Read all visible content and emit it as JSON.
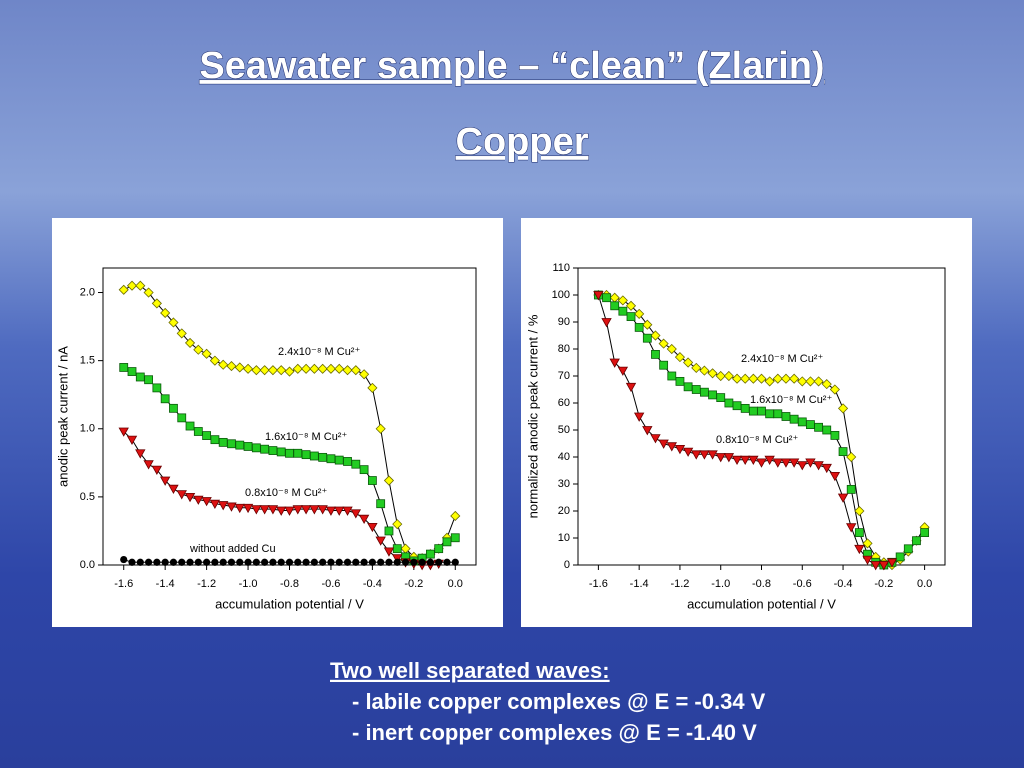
{
  "title": "Seawater sample – “clean” (Zlarin)",
  "subtitle": "Copper",
  "chart_data": [
    {
      "type": "line",
      "xlabel": "accumulation potential / V",
      "ylabel": "anodic peak current / nA",
      "xlim": [
        -1.7,
        0.1
      ],
      "ylim": [
        0,
        2.18
      ],
      "xticks": [
        -1.6,
        -1.4,
        -1.2,
        {
          "value": -1,
          "label": "-1.0"
        },
        -0.8,
        -0.6,
        -0.4,
        -0.2,
        {
          "value": 0,
          "label": "0.0"
        }
      ],
      "yticks": [
        {
          "value": 0,
          "label": "0.0"
        },
        0.5,
        {
          "value": 1,
          "label": "1.0"
        },
        1.5,
        {
          "value": 2,
          "label": "2.0"
        }
      ],
      "line_color": "#000000",
      "x": [
        -1.6,
        -1.56,
        -1.52,
        -1.48,
        -1.44,
        -1.4,
        -1.36,
        -1.32,
        -1.28,
        -1.24,
        -1.2,
        -1.16,
        -1.12,
        -1.08,
        -1.04,
        -1.0,
        -0.96,
        -0.92,
        -0.88,
        -0.84,
        -0.8,
        -0.76,
        -0.72,
        -0.68,
        -0.64,
        -0.6,
        -0.56,
        -0.52,
        -0.48,
        -0.44,
        -0.4,
        -0.36,
        -0.32,
        -0.28,
        -0.24,
        -0.2,
        -0.16,
        -0.12,
        -0.08,
        -0.04,
        0
      ],
      "series": [
        {
          "name": "2.4x10⁻⁸ M Cu²⁺",
          "color": "#ffff00",
          "marker": "diamond",
          "values": [
            2.02,
            2.05,
            2.05,
            2.0,
            1.92,
            1.85,
            1.78,
            1.7,
            1.63,
            1.58,
            1.55,
            1.5,
            1.47,
            1.46,
            1.45,
            1.44,
            1.43,
            1.43,
            1.43,
            1.43,
            1.42,
            1.44,
            1.44,
            1.44,
            1.44,
            1.44,
            1.44,
            1.43,
            1.43,
            1.4,
            1.3,
            1.0,
            0.62,
            0.3,
            0.12,
            0.06,
            0.05,
            0.08,
            0.12,
            0.2,
            0.36
          ]
        },
        {
          "name": "1.6x10⁻⁸ M Cu²⁺",
          "color": "#22cc22",
          "marker": "square",
          "values": [
            1.45,
            1.42,
            1.38,
            1.36,
            1.3,
            1.22,
            1.15,
            1.08,
            1.02,
            0.98,
            0.95,
            0.92,
            0.9,
            0.89,
            0.88,
            0.87,
            0.86,
            0.85,
            0.84,
            0.83,
            0.82,
            0.82,
            0.81,
            0.8,
            0.79,
            0.78,
            0.77,
            0.76,
            0.74,
            0.7,
            0.62,
            0.45,
            0.25,
            0.12,
            0.06,
            0.03,
            0.05,
            0.08,
            0.12,
            0.17,
            0.2
          ]
        },
        {
          "name": "0.8x10⁻⁸ M Cu²⁺",
          "color": "#dd1111",
          "marker": "triangle",
          "values": [
            0.98,
            0.92,
            0.82,
            0.74,
            0.7,
            0.62,
            0.56,
            0.52,
            0.5,
            0.48,
            0.47,
            0.45,
            0.44,
            0.43,
            0.42,
            0.42,
            0.41,
            0.41,
            0.41,
            0.4,
            0.4,
            0.41,
            0.41,
            0.41,
            0.41,
            0.4,
            0.4,
            0.4,
            0.38,
            0.34,
            0.28,
            0.18,
            0.1,
            0.05,
            0.02,
            0.01,
            0,
            0,
            0.01,
            null,
            null
          ]
        },
        {
          "name": "without added Cu",
          "color": "#000000",
          "marker": "circle",
          "values": [
            0.04,
            0.02,
            0.02,
            0.02,
            0.02,
            0.02,
            0.02,
            0.02,
            0.02,
            0.02,
            0.02,
            0.02,
            0.02,
            0.02,
            0.02,
            0.02,
            0.02,
            0.02,
            0.02,
            0.02,
            0.02,
            0.02,
            0.02,
            0.02,
            0.02,
            0.02,
            0.02,
            0.02,
            0.02,
            0.02,
            0.02,
            0.02,
            0.02,
            0.02,
            0.02,
            0.02,
            0.02,
            0.02,
            0.02,
            0.02,
            0.02
          ]
        }
      ]
    },
    {
      "type": "line",
      "xlabel": "accumulation potential / V",
      "ylabel": "normalized anodic peak current / %",
      "xlim": [
        -1.7,
        0.1
      ],
      "ylim": [
        0,
        110
      ],
      "xticks": [
        -1.6,
        -1.4,
        -1.2,
        {
          "value": -1,
          "label": "-1.0"
        },
        -0.8,
        -0.6,
        -0.4,
        -0.2,
        {
          "value": 0,
          "label": "0.0"
        }
      ],
      "yticks": [
        0,
        10,
        20,
        30,
        40,
        50,
        60,
        70,
        80,
        90,
        100,
        110
      ],
      "line_color": "#000000",
      "x": [
        -1.6,
        -1.56,
        -1.52,
        -1.48,
        -1.44,
        -1.4,
        -1.36,
        -1.32,
        -1.28,
        -1.24,
        -1.2,
        -1.16,
        -1.12,
        -1.08,
        -1.04,
        -1.0,
        -0.96,
        -0.92,
        -0.88,
        -0.84,
        -0.8,
        -0.76,
        -0.72,
        -0.68,
        -0.64,
        -0.6,
        -0.56,
        -0.52,
        -0.48,
        -0.44,
        -0.4,
        -0.36,
        -0.32,
        -0.28,
        -0.24,
        -0.2,
        -0.16,
        -0.12,
        -0.08,
        -0.04,
        0
      ],
      "series": [
        {
          "name": "2.4x10⁻⁸ M Cu²⁺",
          "color": "#ffff00",
          "marker": "diamond",
          "values": [
            100,
            100,
            99,
            98,
            96,
            93,
            89,
            85,
            82,
            80,
            77,
            75,
            73,
            72,
            71,
            70,
            70,
            69,
            69,
            69,
            69,
            68,
            69,
            69,
            69,
            68,
            68,
            68,
            67,
            65,
            58,
            40,
            20,
            8,
            3,
            1,
            0,
            2,
            5,
            9,
            14
          ]
        },
        {
          "name": "1.6x10⁻⁸ M Cu²⁺",
          "color": "#22cc22",
          "marker": "square",
          "values": [
            100,
            99,
            96,
            94,
            92,
            88,
            84,
            78,
            74,
            70,
            68,
            66,
            65,
            64,
            63,
            62,
            60,
            59,
            58,
            57,
            57,
            56,
            56,
            55,
            54,
            53,
            52,
            51,
            50,
            48,
            42,
            28,
            12,
            4,
            1,
            0,
            1,
            3,
            6,
            9,
            12
          ]
        },
        {
          "name": "0.8x10⁻⁸ M Cu²⁺",
          "color": "#dd1111",
          "marker": "triangle",
          "values": [
            100,
            90,
            75,
            72,
            66,
            55,
            50,
            47,
            45,
            44,
            43,
            42,
            41,
            41,
            41,
            40,
            40,
            39,
            39,
            39,
            38,
            39,
            38,
            38,
            38,
            37,
            38,
            37,
            36,
            33,
            25,
            14,
            6,
            2,
            0,
            0,
            1,
            null,
            null,
            null,
            null
          ]
        }
      ]
    }
  ],
  "notes": {
    "heading": "Two well separated waves:",
    "items": [
      "- labile copper complexes @ E = -0.34 V",
      "- inert copper complexes @ E = -1.40 V"
    ]
  }
}
